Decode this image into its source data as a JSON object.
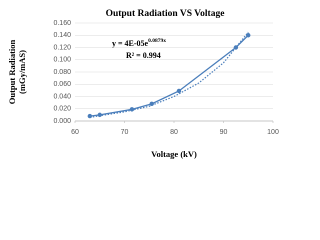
{
  "chart_data": {
    "type": "scatter",
    "title": "Output Radiation VS Voltage",
    "x_label": "Voltage (kV)",
    "y_label": [
      "Output Radiation",
      "(mGy/mAS)"
    ],
    "equation": "y = 4E-05e",
    "equation_exponent": "0.0879x",
    "r_squared": "R² = 0.994",
    "color": "#4a7ebb",
    "x": [
      63,
      65,
      71.5,
      75.5,
      81,
      92.5,
      95
    ],
    "values": [
      0.008,
      0.01,
      0.019,
      0.028,
      0.049,
      0.12,
      0.14
    ],
    "trendline": {
      "x": [
        63,
        70,
        75,
        80,
        85,
        90,
        95
      ],
      "values": [
        0.006,
        0.015,
        0.024,
        0.04,
        0.062,
        0.095,
        0.145
      ]
    },
    "xlim": [
      60,
      100
    ],
    "xticks": [
      60,
      70,
      80,
      90,
      100
    ],
    "ylim": [
      0,
      0.16
    ],
    "yticks": [
      {
        "value": 0,
        "label": "0.000"
      },
      {
        "value": 0.02,
        "label": "0.020"
      },
      {
        "value": 0.04,
        "label": "0.040"
      },
      {
        "value": 0.06,
        "label": "0.060"
      },
      {
        "value": 0.08,
        "label": "0.080"
      },
      {
        "value": 0.1,
        "label": "0.100"
      },
      {
        "value": 0.12,
        "label": "0.120"
      },
      {
        "value": 0.14,
        "label": "0.140"
      },
      {
        "value": 0.16,
        "label": "0.160"
      }
    ],
    "grid": true
  }
}
